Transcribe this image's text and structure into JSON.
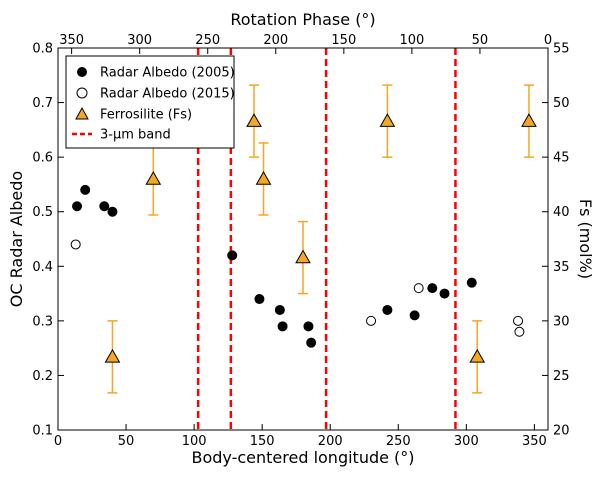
{
  "chart_data": {
    "type": "scatter",
    "title": "",
    "xlabel": "Body-centered longitude (°)",
    "ylabel": "OC Radar Albedo",
    "top_xlabel": "Rotation Phase (°)",
    "right_ylabel": "Fs (mol%)",
    "xlim": [
      0,
      360
    ],
    "ylim": [
      0.1,
      0.8
    ],
    "right_ylim": [
      20,
      55
    ],
    "x_ticks": [
      0,
      50,
      100,
      150,
      200,
      250,
      300,
      350
    ],
    "y_ticks": [
      0.1,
      0.2,
      0.3,
      0.4,
      0.5,
      0.6,
      0.7,
      0.8
    ],
    "y_tick_labels": [
      "0.1",
      "0.2",
      "0.3",
      "0.4",
      "0.5",
      "0.6",
      "0.7",
      "0.8"
    ],
    "right_y_ticks": [
      20,
      25,
      30,
      35,
      40,
      45,
      50,
      55
    ],
    "top_x_ticks": [
      350,
      300,
      250,
      200,
      150,
      100,
      50,
      0
    ],
    "grid": false,
    "legend_position": "top-left",
    "series": [
      {
        "name": "Radar Albedo (2005)",
        "marker": "filled-circle",
        "color": "#000000",
        "points": [
          [
            14,
            0.51
          ],
          [
            20,
            0.54
          ],
          [
            34,
            0.51
          ],
          [
            40,
            0.5
          ],
          [
            128,
            0.42
          ],
          [
            148,
            0.34
          ],
          [
            163,
            0.32
          ],
          [
            165,
            0.29
          ],
          [
            184,
            0.29
          ],
          [
            186,
            0.26
          ],
          [
            242,
            0.32
          ],
          [
            262,
            0.31
          ],
          [
            275,
            0.36
          ],
          [
            284,
            0.35
          ],
          [
            304,
            0.37
          ]
        ]
      },
      {
        "name": "Radar Albedo (2015)",
        "marker": "open-circle",
        "color": "#000000",
        "points": [
          [
            13,
            0.44
          ],
          [
            230,
            0.3
          ],
          [
            265,
            0.36
          ],
          [
            338,
            0.3
          ],
          [
            339,
            0.28
          ]
        ]
      },
      {
        "name": "Ferrosilite (Fs)",
        "marker": "triangle",
        "color": "#f5a623",
        "axis": "right",
        "points": [
          {
            "x": 40,
            "y": 26.7,
            "err": 3.3
          },
          {
            "x": 70,
            "y": 43.0,
            "err": 3.3
          },
          {
            "x": 144,
            "y": 48.3,
            "err": 3.3
          },
          {
            "x": 151,
            "y": 43.0,
            "err": 3.3
          },
          {
            "x": 180,
            "y": 35.8,
            "err": 3.3
          },
          {
            "x": 242,
            "y": 48.3,
            "err": 3.3
          },
          {
            "x": 308,
            "y": 26.7,
            "err": 3.3
          },
          {
            "x": 346,
            "y": 48.3,
            "err": 3.3
          }
        ]
      },
      {
        "name": "3-μm band",
        "marker": "dashed-line",
        "color": "#ff0000",
        "x": [
          103,
          127,
          197,
          292
        ]
      }
    ]
  }
}
